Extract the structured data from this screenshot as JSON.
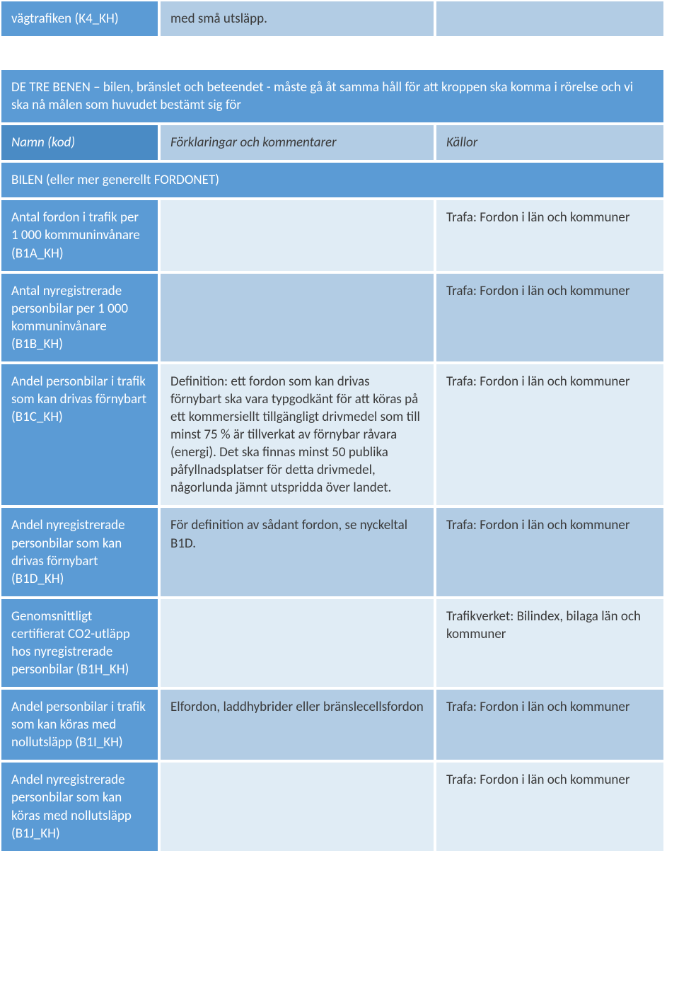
{
  "top": {
    "label": "vägtrafiken (K4_KH)",
    "middle": "med små utsläpp."
  },
  "section_header": "DE TRE BENEN – bilen, bränslet och beteendet - måste gå åt samma håll för att kroppen ska komma i rörelse och vi ska nå målen som huvudet bestämt sig för",
  "columns": {
    "name": "Namn (kod)",
    "explain": "Förklaringar och kommentarer",
    "source": "Källor"
  },
  "subheader": "BILEN (eller mer generellt FORDONET)",
  "rows": [
    {
      "name": "Antal fordon i trafik per 1 000 kommuninvånare (B1A_KH)",
      "explain": "",
      "source": "Trafa: Fordon i län och kommuner"
    },
    {
      "name": "Antal nyregistrerade personbilar per 1 000 kommuninvånare (B1B_KH)",
      "explain": "",
      "source": "Trafa: Fordon i län och kommuner"
    },
    {
      "name": "Andel personbilar i trafik som kan drivas förnybart (B1C_KH)",
      "explain": "Definition: ett fordon som kan drivas förnybart ska vara typgodkänt för att köras på ett kommersiellt tillgängligt drivmedel som till minst 75 % är tillverkat av förnybar råvara (energi). Det ska finnas minst 50 publika påfyllnadsplatser för detta drivmedel, någorlunda jämnt utspridda över landet.",
      "source": "Trafa: Fordon i län och kommuner"
    },
    {
      "name": "Andel nyregistrerade personbilar som kan drivas förnybart (B1D_KH)",
      "explain": "För definition av sådant fordon, se nyckeltal B1D.",
      "source": "Trafa: Fordon i län och kommuner"
    },
    {
      "name": "Genomsnittligt certifierat CO2-utläpp hos nyregistrerade personbilar (B1H_KH)",
      "explain": "",
      "source": "Trafikverket: Bilindex, bilaga län och kommuner"
    },
    {
      "name": "Andel personbilar i trafik som kan köras med nollutsläpp (B1I_KH)",
      "explain": "Elfordon, laddhybrider eller bränslecellsfordon",
      "source": "Trafa: Fordon i län och kommuner"
    },
    {
      "name": "Andel nyregistrerade personbilar som kan köras med nollutsläpp (B1J_KH)",
      "explain": "",
      "source": "Trafa: Fordon i län och kommuner"
    }
  ]
}
